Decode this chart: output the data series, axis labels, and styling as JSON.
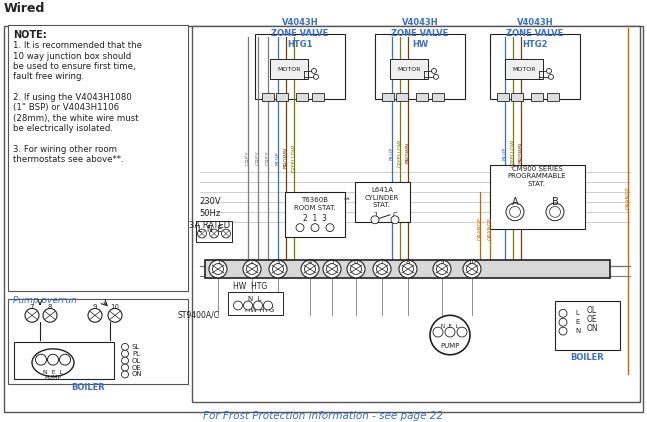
{
  "title": "Wired",
  "bg": "#ffffff",
  "note_lines": [
    "NOTE:",
    "1. It is recommended that the",
    "10 way junction box should",
    "be used to ensure first time,",
    "fault free wiring.",
    " ",
    "2. If using the V4043H1080",
    "(1\" BSP) or V4043H1106",
    "(28mm), the white wire must",
    "be electrically isolated.",
    " ",
    "3. For wiring other room",
    "thermostats see above**."
  ],
  "blue": "#3a6fc4",
  "grey": "#7a7a7a",
  "brown": "#7a3a00",
  "gyellow": "#7a7a00",
  "orange": "#c86400",
  "black": "#222222",
  "footer": "For Frost Protection information - see page 22"
}
